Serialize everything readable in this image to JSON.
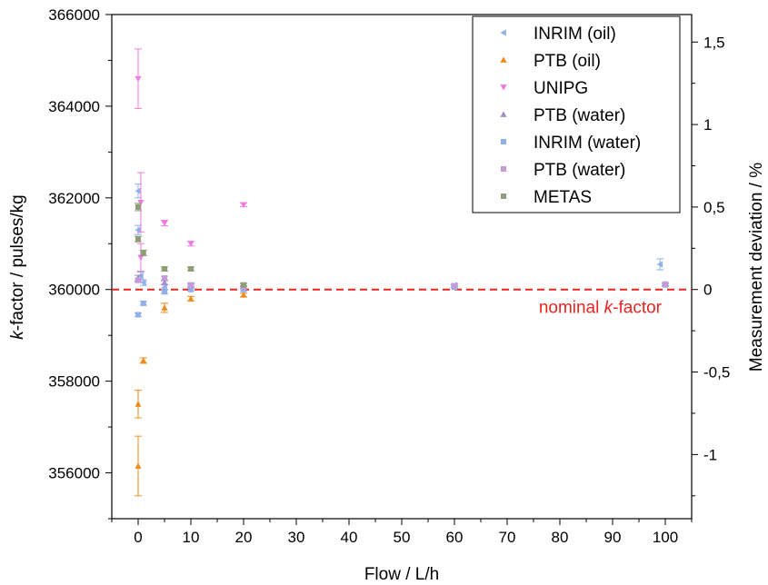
{
  "chart_data": {
    "type": "scatter",
    "xlabel": "Flow / L/h",
    "ylabel_parts": [
      {
        "text": "k",
        "italic": true
      },
      {
        "text": "-factor / pulses/kg",
        "italic": false
      }
    ],
    "ylabel_right": "Measurement deviation / %",
    "xlim": [
      -5,
      105
    ],
    "ylim": [
      355000,
      366000
    ],
    "y2lim": [
      -1.3889,
      1.6667
    ],
    "x_ticks": [
      0,
      10,
      20,
      30,
      40,
      50,
      60,
      70,
      80,
      90,
      100
    ],
    "x_tick_labels": [
      "0",
      "10",
      "20",
      "30",
      "40",
      "50",
      "60",
      "70",
      "80",
      "90",
      "100"
    ],
    "y_ticks": [
      356000,
      358000,
      360000,
      362000,
      364000,
      366000
    ],
    "y_tick_labels": [
      "356000",
      "358000",
      "360000",
      "362000",
      "364000",
      "366000"
    ],
    "y2_ticks": [
      -1,
      -0.5,
      0,
      0.5,
      1,
      1.5
    ],
    "y2_tick_labels": [
      "-1",
      "-0,5",
      "0",
      "0,5",
      "1",
      "1,5"
    ],
    "grid": false,
    "legend_position": "top-right",
    "reference_line": {
      "y": 360000,
      "color": "#e8251f",
      "style": "dashed",
      "label_parts": [
        {
          "text": "nominal ",
          "italic": false
        },
        {
          "text": "k",
          "italic": true
        },
        {
          "text": "-factor",
          "italic": false
        }
      ]
    },
    "series": [
      {
        "name": "INRIM (oil)",
        "marker": "triangle-left",
        "color": "#8fb0ea",
        "points": [
          {
            "x": 0,
            "y": 362150,
            "err": 150
          },
          {
            "x": 0,
            "y": 361300,
            "err": 100
          },
          {
            "x": 0.5,
            "y": 360300,
            "err": 80
          },
          {
            "x": 1,
            "y": 360150,
            "err": 60
          },
          {
            "x": 5,
            "y": 360050,
            "err": 50
          },
          {
            "x": 10,
            "y": 360100,
            "err": 40
          },
          {
            "x": 20,
            "y": 360100,
            "err": 40
          },
          {
            "x": 60,
            "y": 360100,
            "err": 30
          },
          {
            "x": 99,
            "y": 360550,
            "err": 120
          },
          {
            "x": 100,
            "y": 360100,
            "err": 30
          }
        ]
      },
      {
        "name": "PTB (oil)",
        "marker": "triangle-up",
        "color": "#f08a1c",
        "points": [
          {
            "x": 0,
            "y": 356150,
            "err": 650
          },
          {
            "x": 0,
            "y": 357500,
            "err": 300
          },
          {
            "x": 1,
            "y": 358450,
            "err": 60
          },
          {
            "x": 5,
            "y": 359600,
            "err": 100
          },
          {
            "x": 10,
            "y": 359800,
            "err": 50
          },
          {
            "x": 20,
            "y": 359880,
            "err": 40
          }
        ]
      },
      {
        "name": "UNIPG",
        "marker": "triangle-down",
        "color": "#f07ae0",
        "points": [
          {
            "x": 0,
            "y": 364600,
            "err": 650
          },
          {
            "x": 0.5,
            "y": 361900,
            "err": 650
          },
          {
            "x": 0.5,
            "y": 360700,
            "err": 300
          },
          {
            "x": 5,
            "y": 361450,
            "err": 60
          },
          {
            "x": 10,
            "y": 361000,
            "err": 50
          },
          {
            "x": 20,
            "y": 361850,
            "err": 40
          }
        ]
      },
      {
        "name": "PTB (water)",
        "marker": "triangle-up",
        "color": "#a48cc8",
        "points": [
          {
            "x": 0,
            "y": 360250,
            "err": 60
          },
          {
            "x": 5,
            "y": 360150,
            "err": 40
          },
          {
            "x": 10,
            "y": 360080,
            "err": 40
          },
          {
            "x": 20,
            "y": 360050,
            "err": 30
          },
          {
            "x": 100,
            "y": 360120,
            "err": 30
          }
        ]
      },
      {
        "name": "INRIM (water)",
        "marker": "square",
        "color": "#8fb0ea",
        "points": [
          {
            "x": 0,
            "y": 359450,
            "err": 40
          },
          {
            "x": 1,
            "y": 359700,
            "err": 40
          },
          {
            "x": 5,
            "y": 359950,
            "err": 40
          },
          {
            "x": 10,
            "y": 360000,
            "err": 30
          },
          {
            "x": 20,
            "y": 360000,
            "err": 30
          },
          {
            "x": 60,
            "y": 360050,
            "err": 30
          },
          {
            "x": 100,
            "y": 360100,
            "err": 30
          }
        ]
      },
      {
        "name": "PTB (water)",
        "marker": "square",
        "color": "#c49bd6",
        "points": [
          {
            "x": 0,
            "y": 360200,
            "err": 40
          },
          {
            "x": 5,
            "y": 360250,
            "err": 40
          },
          {
            "x": 10,
            "y": 360100,
            "err": 30
          },
          {
            "x": 20,
            "y": 360050,
            "err": 30
          },
          {
            "x": 60,
            "y": 360080,
            "err": 30
          },
          {
            "x": 100,
            "y": 360120,
            "err": 30
          }
        ]
      },
      {
        "name": "METAS",
        "marker": "square",
        "color": "#8f9e78",
        "points": [
          {
            "x": 0,
            "y": 361800,
            "err": 80
          },
          {
            "x": 0,
            "y": 361100,
            "err": 60
          },
          {
            "x": 1,
            "y": 360800,
            "err": 60
          },
          {
            "x": 5,
            "y": 360450,
            "err": 40
          },
          {
            "x": 10,
            "y": 360450,
            "err": 40
          },
          {
            "x": 20,
            "y": 360100,
            "err": 30
          }
        ]
      }
    ]
  }
}
